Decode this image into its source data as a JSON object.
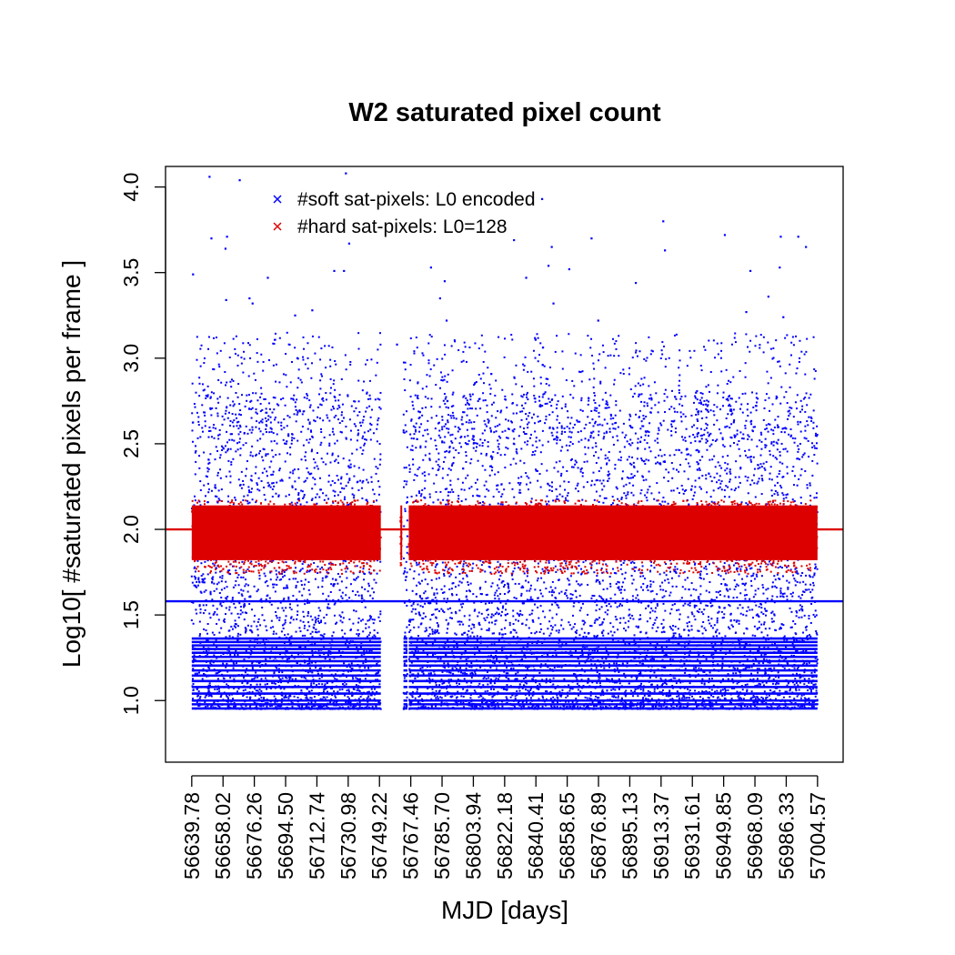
{
  "chart_data": {
    "type": "scatter",
    "title": "W2 saturated pixel count",
    "xlabel": "MJD [days]",
    "ylabel": "Log10[ #saturated pixels per frame ]",
    "x_ticks": [
      "56639.78",
      "56658.02",
      "56676.26",
      "56694.50",
      "56712.74",
      "56730.98",
      "56749.22",
      "56767.46",
      "56785.70",
      "56803.94",
      "56822.18",
      "56840.41",
      "56858.65",
      "56876.89",
      "56895.13",
      "56913.37",
      "56931.61",
      "56949.85",
      "56968.09",
      "56986.33",
      "57004.57"
    ],
    "x_tick_values": [
      56639.78,
      56658.02,
      56676.26,
      56694.5,
      56712.74,
      56730.98,
      56749.22,
      56767.46,
      56785.7,
      56803.94,
      56822.18,
      56840.41,
      56858.65,
      56876.89,
      56895.13,
      56913.37,
      56931.61,
      56949.85,
      56968.09,
      56986.33,
      57004.57
    ],
    "xlim": [
      56624.5,
      57019.5
    ],
    "y_ticks": [
      "1.0",
      "1.5",
      "2.0",
      "2.5",
      "3.0",
      "3.5",
      "4.0"
    ],
    "y_tick_values": [
      1.0,
      1.5,
      2.0,
      2.5,
      3.0,
      3.5,
      4.0
    ],
    "ylim": [
      0.64,
      4.12
    ],
    "grid": false,
    "legend_position": "top-left",
    "series": [
      {
        "name": "#soft sat-pixels: L0 encoded",
        "marker": "x",
        "color": "#0000ff",
        "x_ranges": [
          [
            56639.78,
            56750.0
          ],
          [
            56763.2,
            56765.5
          ],
          [
            56766.3,
            57004.57
          ]
        ],
        "y_min": 0.95,
        "y_bulk_max": 2.8,
        "discrete_levels": [
          0.954,
          0.978,
          1.0,
          1.041,
          1.079,
          1.114,
          1.146,
          1.176,
          1.204,
          1.23,
          1.255,
          1.279,
          1.301,
          1.322,
          1.342,
          1.362
        ],
        "outliers": [
          {
            "x": 56640.5,
            "y": 3.49
          },
          {
            "x": 56650.1,
            "y": 4.06
          },
          {
            "x": 56651.2,
            "y": 3.7
          },
          {
            "x": 56659.4,
            "y": 3.64
          },
          {
            "x": 56660.3,
            "y": 3.71
          },
          {
            "x": 56659.8,
            "y": 3.34
          },
          {
            "x": 56667.7,
            "y": 4.04
          },
          {
            "x": 56673.4,
            "y": 3.35
          },
          {
            "x": 56675.2,
            "y": 3.32
          },
          {
            "x": 56684.1,
            "y": 3.47
          },
          {
            "x": 56700.0,
            "y": 3.25
          },
          {
            "x": 56710.0,
            "y": 3.28
          },
          {
            "x": 56722.8,
            "y": 3.51
          },
          {
            "x": 56728.5,
            "y": 3.51
          },
          {
            "x": 56729.6,
            "y": 4.08
          },
          {
            "x": 56731.5,
            "y": 3.67
          },
          {
            "x": 56759.4,
            "y": 3.08
          },
          {
            "x": 56779.2,
            "y": 3.53
          },
          {
            "x": 56784.5,
            "y": 3.35
          },
          {
            "x": 56787.2,
            "y": 3.45
          },
          {
            "x": 56788.3,
            "y": 3.22
          },
          {
            "x": 56827.6,
            "y": 3.69
          },
          {
            "x": 56834.7,
            "y": 3.47
          },
          {
            "x": 56844.0,
            "y": 3.93
          },
          {
            "x": 56847.7,
            "y": 3.54
          },
          {
            "x": 56849.6,
            "y": 3.65
          },
          {
            "x": 56850.6,
            "y": 3.32
          },
          {
            "x": 56859.8,
            "y": 3.52
          },
          {
            "x": 56872.8,
            "y": 3.7
          },
          {
            "x": 56876.7,
            "y": 3.22
          },
          {
            "x": 56898.6,
            "y": 3.44
          },
          {
            "x": 56914.6,
            "y": 3.8
          },
          {
            "x": 56915.6,
            "y": 3.63
          },
          {
            "x": 56950.5,
            "y": 3.72
          },
          {
            "x": 56963.0,
            "y": 3.27
          },
          {
            "x": 56965.4,
            "y": 3.51
          },
          {
            "x": 56975.9,
            "y": 3.36
          },
          {
            "x": 56982.5,
            "y": 3.53
          },
          {
            "x": 56983.1,
            "y": 3.71
          },
          {
            "x": 56984.6,
            "y": 3.24
          },
          {
            "x": 56993.3,
            "y": 3.71
          },
          {
            "x": 56997.8,
            "y": 3.65
          }
        ]
      },
      {
        "name": "#hard sat-pixels: L0=128",
        "marker": "x",
        "color": "#dd0000",
        "x_ranges": [
          [
            56639.78,
            56750.0
          ],
          [
            56761.4,
            56762.2
          ],
          [
            56766.3,
            57004.57
          ]
        ],
        "y_core_range": [
          1.82,
          2.14
        ],
        "y_spread_range": [
          1.74,
          2.17
        ]
      }
    ],
    "reference_lines": [
      {
        "y": 2.0,
        "color": "#dd0000"
      },
      {
        "y": 1.58,
        "color": "#0000ff"
      }
    ]
  }
}
